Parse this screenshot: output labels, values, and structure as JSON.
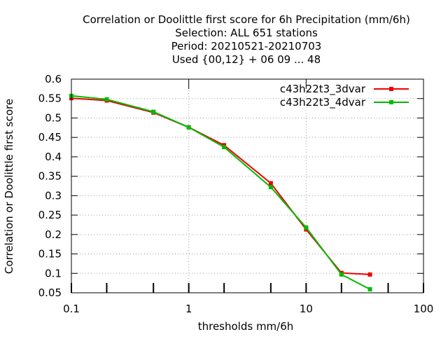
{
  "chart_data": {
    "type": "line",
    "title_lines": [
      "Correlation or Doolittle first score  for 6h Precipitation (mm/6h)",
      "Selection: ALL    651 stations",
      "Period: 20210521-20210703",
      "Used {00,12} + 06 09 ... 48"
    ],
    "xlabel": "thresholds mm/6h",
    "ylabel": "Correlation or Doolittle first score",
    "x_scale": "log",
    "xlim": [
      0.1,
      100
    ],
    "ylim": [
      0.05,
      0.6
    ],
    "x_ticks": [
      0.1,
      1,
      10,
      100
    ],
    "x_tick_labels": [
      "0.1",
      "1",
      "10",
      "100"
    ],
    "y_ticks": [
      0.05,
      0.1,
      0.15,
      0.2,
      0.25,
      0.3,
      0.35,
      0.4,
      0.45,
      0.5,
      0.55,
      0.6
    ],
    "y_tick_labels": [
      "0.05",
      "0.1",
      "0.15",
      "0.2",
      "0.25",
      "0.3",
      "0.35",
      "0.4",
      "0.45",
      "0.5",
      "0.55",
      "0.6"
    ],
    "x_minor_ticks": [
      0.2,
      0.5,
      2,
      5,
      20,
      50
    ],
    "grid": true,
    "legend_position": "top-right",
    "series": [
      {
        "name": "c43h22t3_3dvar",
        "color": "#ee0000",
        "x": [
          0.1,
          0.2,
          0.5,
          1,
          2,
          5,
          10,
          20,
          35
        ],
        "values": [
          0.551,
          0.545,
          0.514,
          0.476,
          0.43,
          0.332,
          0.213,
          0.101,
          0.097
        ]
      },
      {
        "name": "c43h22t3_4dvar",
        "color": "#00bb00",
        "x": [
          0.1,
          0.2,
          0.5,
          1,
          2,
          5,
          10,
          20,
          35
        ],
        "values": [
          0.557,
          0.548,
          0.516,
          0.476,
          0.425,
          0.322,
          0.218,
          0.097,
          0.059
        ]
      }
    ]
  }
}
